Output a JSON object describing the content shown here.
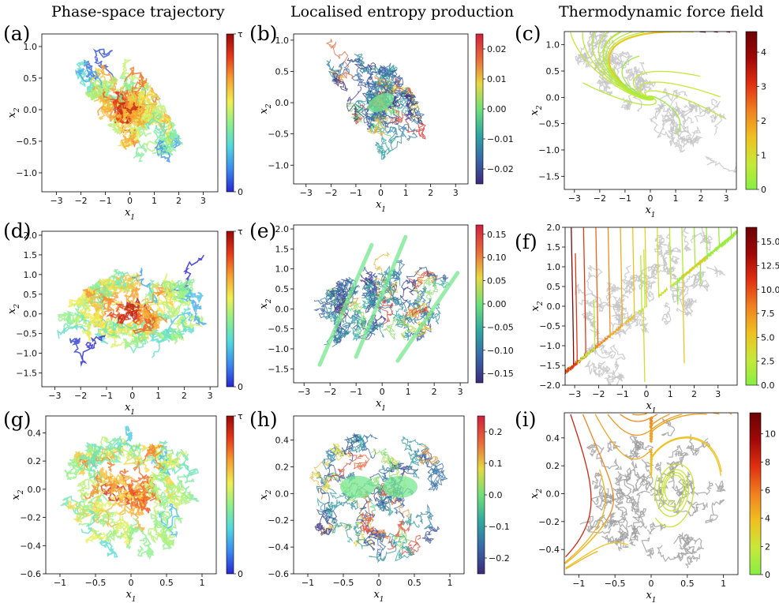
{
  "column_titles": [
    "Phase-space trajectory",
    "Localised entropy production",
    "Thermodynamic force field"
  ],
  "colors": {
    "jet": [
      "#2828d0",
      "#3a8af0",
      "#50d8e0",
      "#8cf08c",
      "#f0f050",
      "#f8a030",
      "#e83818",
      "#980808"
    ],
    "vs": [
      "#3c2a7a",
      "#3868a8",
      "#30a8a0",
      "#70e078",
      "#e8d840",
      "#e86a3a",
      "#d0203c"
    ],
    "force": [
      "#88ee44",
      "#c8e838",
      "#f0c020",
      "#f08020",
      "#e03010",
      "#a00808",
      "#6a0404"
    ],
    "trace_gray": "#bdbdbd"
  },
  "chart_data": [
    {
      "id": "a",
      "label": "(a)",
      "type": "scatter",
      "kind": "trajectory",
      "shape": "ellipse",
      "xlabel": "x1",
      "ylabel": "x2",
      "xlim": [
        -3.6,
        3.6
      ],
      "ylim": [
        -1.3,
        1.2
      ],
      "xticks": [
        -3,
        -2,
        -1,
        0,
        1,
        2,
        3
      ],
      "yticks": [
        -1.0,
        -0.5,
        0.0,
        0.5,
        1.0
      ],
      "colorbar": {
        "type": "jet",
        "ticks": [
          "0",
          "τ"
        ]
      },
      "spread": {
        "cx": 0,
        "cy": 0,
        "rx": 2.8,
        "ry": 0.75,
        "tilt_deg": -26
      }
    },
    {
      "id": "b",
      "label": "(b)",
      "type": "scatter",
      "kind": "entropy",
      "shape": "ellipse",
      "xlabel": "x1",
      "ylabel": "x2",
      "xlim": [
        -3.5,
        3.5
      ],
      "ylim": [
        -1.3,
        1.1
      ],
      "xticks": [
        -3,
        -2,
        -1,
        0,
        1,
        2,
        3
      ],
      "yticks": [
        -1.0,
        -0.5,
        0.0,
        0.5,
        1.0
      ],
      "colorbar": {
        "type": "vs",
        "ticks": [
          "−0.02",
          "−0.01",
          "0.00",
          "0.01",
          "0.02"
        ],
        "range": [
          -0.025,
          0.025
        ]
      },
      "spread": {
        "cx": 0,
        "cy": 0,
        "rx": 2.9,
        "ry": 0.8,
        "tilt_deg": -28
      }
    },
    {
      "id": "c",
      "label": "(c)",
      "type": "streamplot",
      "kind": "force",
      "xlabel": "x1",
      "ylabel": "x2",
      "xlim": [
        -3.4,
        3.4
      ],
      "ylim": [
        -1.75,
        1.25
      ],
      "xticks": [
        -3,
        -2,
        -1,
        0,
        1,
        2,
        3
      ],
      "yticks": [
        -1.5,
        -1.0,
        -0.5,
        0.0,
        0.5,
        1.0
      ],
      "colorbar": {
        "type": "force",
        "ticks": [
          "0",
          "1",
          "2",
          "3",
          "4"
        ],
        "range": [
          0,
          4.6
        ]
      },
      "field": "spiral"
    },
    {
      "id": "d",
      "label": "(d)",
      "type": "scatter",
      "kind": "trajectory",
      "shape": "parallelogram",
      "xlabel": "x1",
      "ylabel": "x2",
      "xlim": [
        -3.5,
        3.3
      ],
      "ylim": [
        -1.85,
        2.1
      ],
      "xticks": [
        -3,
        -2,
        -1,
        0,
        1,
        2,
        3
      ],
      "yticks": [
        -1.5,
        -1.0,
        -0.5,
        0.0,
        0.5,
        1.0,
        1.5,
        2.0
      ],
      "colorbar": {
        "type": "jet",
        "ticks": [
          "0",
          "τ"
        ]
      },
      "spread": {
        "cx": 0,
        "cy": 0.1,
        "rx": 2.8,
        "ry": 1.0,
        "tilt_deg": 0
      }
    },
    {
      "id": "e",
      "label": "(e)",
      "type": "scatter",
      "kind": "entropy",
      "shape": "parallelogram",
      "xlabel": "x1",
      "ylabel": "x2",
      "xlim": [
        -3.4,
        3.3
      ],
      "ylim": [
        -1.85,
        2.1
      ],
      "xticks": [
        -3,
        -2,
        -1,
        0,
        1,
        2,
        3
      ],
      "yticks": [
        -1.5,
        -1.0,
        -0.5,
        0.0,
        0.5,
        1.0,
        1.5,
        2.0
      ],
      "colorbar": {
        "type": "vs",
        "ticks": [
          "−0.15",
          "−0.10",
          "−0.05",
          "0.00",
          "0.05",
          "0.10",
          "0.15"
        ],
        "range": [
          -0.17,
          0.17
        ]
      },
      "spread": {
        "cx": 0,
        "cy": 0.1,
        "rx": 2.9,
        "ry": 1.0,
        "tilt_deg": 0
      }
    },
    {
      "id": "f",
      "label": "(f)",
      "type": "streamplot",
      "kind": "force",
      "xlabel": "x1",
      "ylabel": "x2",
      "xlim": [
        -3.4,
        3.8
      ],
      "ylim": [
        -2.0,
        2.0
      ],
      "xticks": [
        -3,
        -2,
        -1,
        0,
        1,
        2,
        3
      ],
      "yticks": [
        -2.0,
        -1.5,
        -1.0,
        -0.5,
        0.0,
        0.5,
        1.0,
        1.5,
        2.0
      ],
      "colorbar": {
        "type": "force",
        "ticks": [
          "0.0",
          "2.5",
          "5.0",
          "7.5",
          "10.0",
          "12.5",
          "15.0"
        ],
        "range": [
          0,
          16.5
        ]
      },
      "field": "shear"
    },
    {
      "id": "g",
      "label": "(g)",
      "type": "scatter",
      "kind": "trajectory",
      "shape": "disk",
      "xlabel": "x1",
      "ylabel": "x2",
      "xlim": [
        -1.2,
        1.2
      ],
      "ylim": [
        -0.6,
        0.52
      ],
      "xticks": [
        -1.0,
        -0.5,
        0.0,
        0.5,
        1.0
      ],
      "yticks": [
        -0.6,
        -0.4,
        -0.2,
        0.0,
        0.2,
        0.4
      ],
      "colorbar": {
        "type": "jet",
        "ticks": [
          "0",
          "τ"
        ]
      },
      "spread": {
        "cx": 0,
        "cy": -0.03,
        "rx": 1.0,
        "ry": 0.48,
        "tilt_deg": 0
      }
    },
    {
      "id": "h",
      "label": "(h)",
      "type": "scatter",
      "kind": "entropy",
      "shape": "disk",
      "xlabel": "x1",
      "ylabel": "x2",
      "xlim": [
        -1.2,
        1.2
      ],
      "ylim": [
        -0.6,
        0.58
      ],
      "xticks": [
        -1.0,
        -0.5,
        0.0,
        0.5,
        1.0
      ],
      "yticks": [
        -0.6,
        -0.4,
        -0.2,
        0.0,
        0.2,
        0.4
      ],
      "colorbar": {
        "type": "vs",
        "ticks": [
          "−0.2",
          "−0.1",
          "0.0",
          "0.1",
          "0.2"
        ],
        "range": [
          -0.25,
          0.25
        ]
      },
      "spread": {
        "cx": 0,
        "cy": -0.02,
        "rx": 1.02,
        "ry": 0.5,
        "tilt_deg": 0
      }
    },
    {
      "id": "i",
      "label": "(i)",
      "type": "streamplot",
      "kind": "force",
      "xlabel": "x1",
      "ylabel": "x2",
      "xlim": [
        -1.2,
        1.2
      ],
      "ylim": [
        -0.58,
        0.58
      ],
      "xticks": [
        -1.0,
        -0.5,
        0.0,
        0.5,
        1.0
      ],
      "yticks": [
        -0.4,
        -0.2,
        0.0,
        0.2,
        0.4
      ],
      "colorbar": {
        "type": "force",
        "ticks": [
          "0",
          "2",
          "4",
          "6",
          "8",
          "10"
        ],
        "range": [
          0,
          11.5
        ]
      },
      "field": "vortices"
    }
  ]
}
